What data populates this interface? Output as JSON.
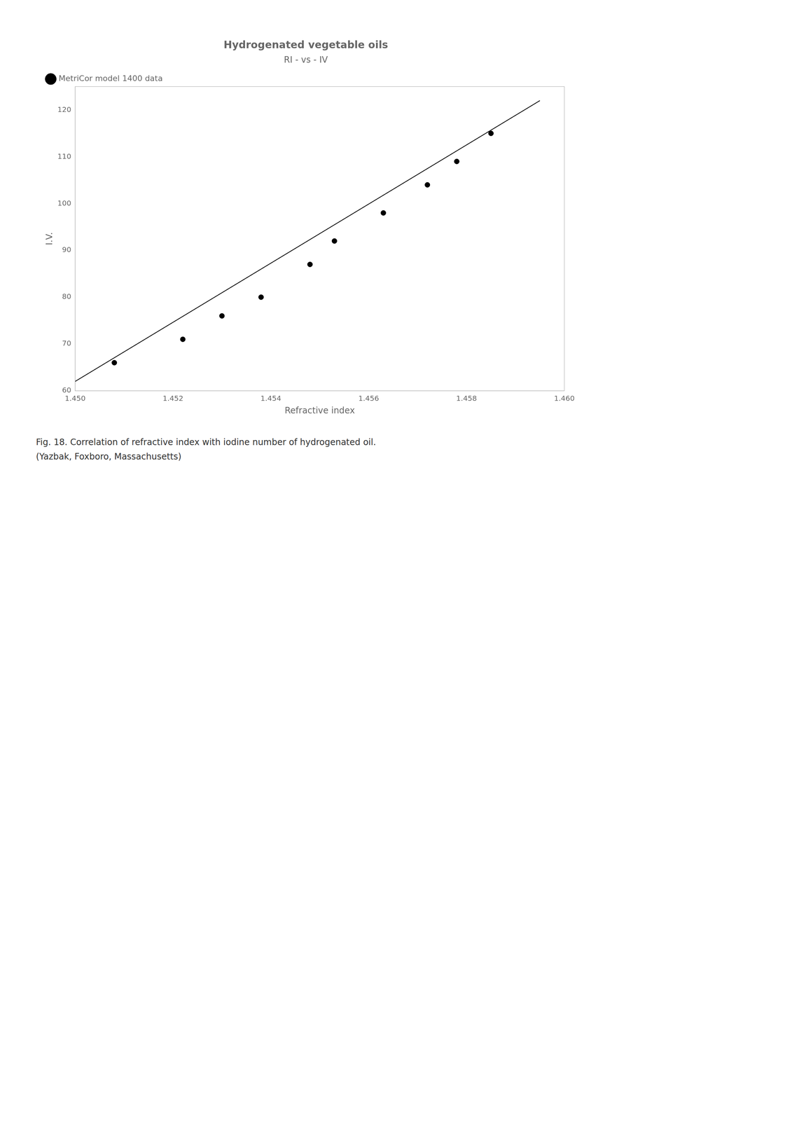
{
  "chart_data": {
    "type": "scatter",
    "title": "Hydrogenated vegetable oils",
    "subtitle": "RI - vs - IV",
    "x_label": "Refractive index",
    "y_label": "I.V.",
    "annotations": [
      "Fig. 18.  Correlation of refractive index with iodine number of hydrogenated oil.",
      "(Yazbak, Foxboro, Massachusetts)"
    ],
    "xlim": [
      1.45,
      1.46
    ],
    "ylim": [
      60,
      125
    ],
    "xticks": [
      {
        "value": 1.45,
        "label": "1.450"
      },
      1.452,
      1.454,
      1.456,
      1.458,
      {
        "value": 1.46,
        "label": "1.460"
      }
    ],
    "yticks": [
      60,
      70,
      80,
      90,
      100,
      110,
      120
    ],
    "grid": false,
    "legend": "upper left",
    "series": [
      {
        "name": "MetriCor model 1400 data",
        "type": "scatter",
        "marker": "circle",
        "color": "#000000",
        "x": [
          1.4508,
          1.4522,
          1.453,
          1.4538,
          1.4548,
          1.4553,
          1.4563,
          1.4572,
          1.4578,
          1.4585
        ],
        "values": [
          66,
          71,
          76,
          80,
          87,
          92,
          98,
          104,
          109,
          115
        ]
      },
      {
        "type": "line",
        "color": "#000000",
        "x": [
          1.45,
          1.4595
        ],
        "values": [
          62,
          122
        ]
      }
    ]
  }
}
